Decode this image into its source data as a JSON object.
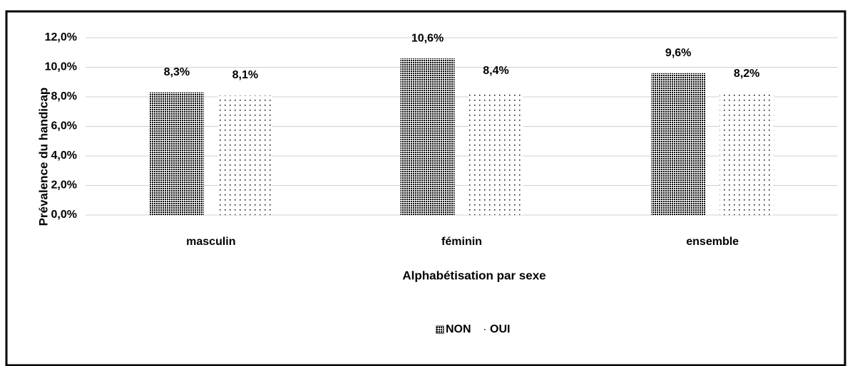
{
  "chart_data": {
    "type": "bar",
    "x_label": "Alphabétisation par sexe",
    "y_label": "Prévalence du handicap",
    "categories": [
      "masculin",
      "féminin",
      "ensemble"
    ],
    "series": [
      {
        "name": "NON",
        "color": "#000000",
        "pattern": "dense",
        "values": [
          8.3,
          10.6,
          9.6
        ],
        "value_labels": [
          "8,3%",
          "10,6%",
          "9,6%"
        ]
      },
      {
        "name": "OUI",
        "color": "#000000",
        "pattern": "sparse",
        "values": [
          8.1,
          8.4,
          8.2
        ],
        "value_labels": [
          "8,1%",
          "8,4%",
          "8,2%"
        ]
      }
    ],
    "ylim": [
      0,
      12
    ],
    "yticks": [
      {
        "value": 0,
        "label": "0,0%"
      },
      {
        "value": 2,
        "label": "2,0%"
      },
      {
        "value": 4,
        "label": "4,0%"
      },
      {
        "value": 6,
        "label": "6,0%"
      },
      {
        "value": 8,
        "label": "8,0%"
      },
      {
        "value": 10,
        "label": "10,0%"
      },
      {
        "value": 12,
        "label": "12,0%"
      }
    ],
    "grid": true,
    "legend": "bottom"
  }
}
